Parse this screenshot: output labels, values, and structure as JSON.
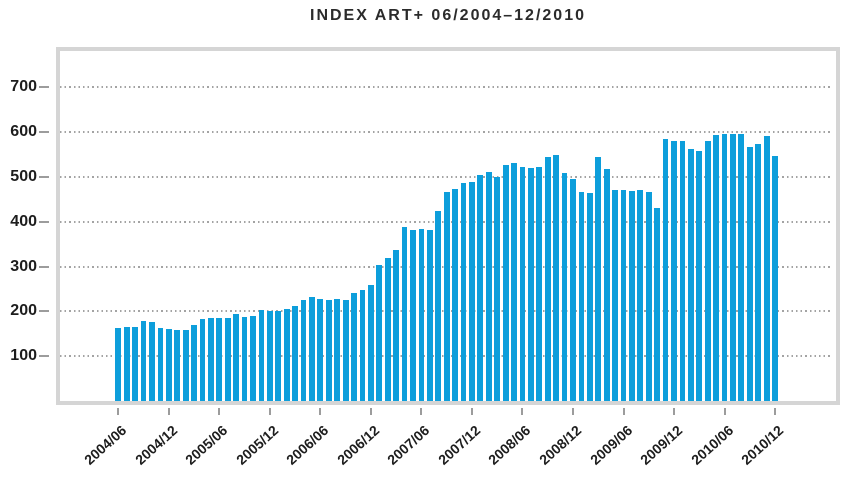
{
  "chart_data": {
    "type": "bar",
    "title": "INDEX ART+ 06/2004–12/2010",
    "x_frequency": "monthly",
    "x": [
      "2004/06",
      "2004/07",
      "2004/08",
      "2004/09",
      "2004/10",
      "2004/11",
      "2004/12",
      "2005/01",
      "2005/02",
      "2005/03",
      "2005/04",
      "2005/05",
      "2005/06",
      "2005/07",
      "2005/08",
      "2005/09",
      "2005/10",
      "2005/11",
      "2005/12",
      "2006/01",
      "2006/02",
      "2006/03",
      "2006/04",
      "2006/05",
      "2006/06",
      "2006/07",
      "2006/08",
      "2006/09",
      "2006/10",
      "2006/11",
      "2006/12",
      "2007/01",
      "2007/02",
      "2007/03",
      "2007/04",
      "2007/05",
      "2007/06",
      "2007/07",
      "2007/08",
      "2007/09",
      "2007/10",
      "2007/11",
      "2007/12",
      "2008/01",
      "2008/02",
      "2008/03",
      "2008/04",
      "2008/05",
      "2008/06",
      "2008/07",
      "2008/08",
      "2008/09",
      "2008/10",
      "2008/11",
      "2008/12",
      "2009/01",
      "2009/02",
      "2009/03",
      "2009/04",
      "2009/05",
      "2009/06",
      "2009/07",
      "2009/08",
      "2009/09",
      "2009/10",
      "2009/11",
      "2009/12",
      "2010/01",
      "2010/02",
      "2010/03",
      "2010/04",
      "2010/05",
      "2010/06",
      "2010/07",
      "2010/08",
      "2010/09",
      "2010/10",
      "2010/11",
      "2010/12"
    ],
    "values": [
      164,
      165,
      165,
      179,
      177,
      163,
      161,
      158,
      158,
      170,
      183,
      185,
      185,
      185,
      194,
      188,
      190,
      202,
      200,
      200,
      206,
      211,
      225,
      233,
      227,
      225,
      228,
      226,
      241,
      248,
      259,
      303,
      320,
      338,
      388,
      382,
      384,
      382,
      423,
      466,
      474,
      486,
      489,
      505,
      512,
      500,
      527,
      532,
      521,
      520,
      521,
      545,
      548,
      508,
      495,
      467,
      463,
      545,
      518,
      470,
      470,
      469,
      471,
      467,
      431,
      584,
      580,
      581,
      563,
      558,
      580,
      594,
      596,
      596,
      596,
      567,
      573,
      592,
      547
    ],
    "x_tick_labels": [
      "2004/06",
      "2004/12",
      "2005/06",
      "2005/12",
      "2006/06",
      "2006/12",
      "2007/06",
      "2007/12",
      "2008/06",
      "2008/12",
      "2009/06",
      "2009/12",
      "2010/06",
      "2010/12"
    ],
    "x_tick_every_n_months": 6,
    "y_tick_labels": [
      "100",
      "200",
      "300",
      "400",
      "500",
      "600",
      "700"
    ],
    "ylim": [
      0,
      780
    ],
    "grid": "horizontal-dotted",
    "legend_position": "none",
    "colors": {
      "bar": "#0d9edb",
      "grid": "#a3a3a3",
      "tick": "#9c9c9c",
      "text": "#1d1d1d",
      "plot_border": "#d5d5d5",
      "background": "#ffffff"
    }
  }
}
